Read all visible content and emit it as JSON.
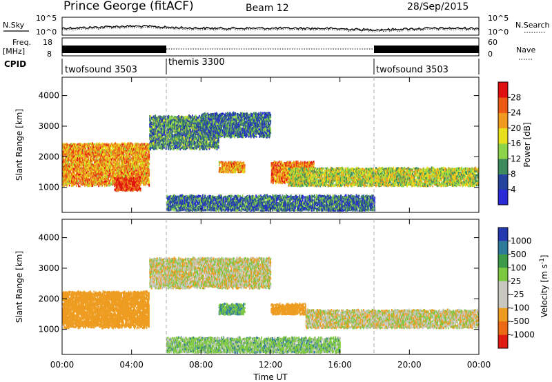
{
  "header": {
    "station": "Prince George (fitACF)",
    "beam": "Beam 12",
    "date": "28/Sep/2015"
  },
  "top_panels": {
    "noise": {
      "left_label": "N.Sky",
      "right_label": "N.Search",
      "left_ticks": [
        "10^5",
        "10^0"
      ],
      "right_ticks": [
        "10^5",
        "10^0"
      ]
    },
    "freq": {
      "left_label_1": "Freq.",
      "left_label_2": "[MHz]",
      "right_label": "Nave",
      "left_ticks": [
        "18",
        "8"
      ],
      "right_ticks": [
        "60",
        "0"
      ]
    },
    "cpid": {
      "label": "CPID",
      "modes": [
        "twofsound 3503",
        "themis 3300",
        "twofsound 3503"
      ]
    }
  },
  "power_panel": {
    "ylabel": "Slant Range [km]",
    "yticks": [
      "1000",
      "2000",
      "3000",
      "4000"
    ],
    "colorbar_label": "Power [dB]",
    "colorbar_ticks": [
      "4",
      "8",
      "12",
      "16",
      "20",
      "24",
      "28"
    ],
    "colors": [
      "#2a2ad8",
      "#26449e",
      "#3d8a5e",
      "#8ed44a",
      "#e8e01c",
      "#f09a1e",
      "#ec5a16",
      "#e01010"
    ]
  },
  "velocity_panel": {
    "ylabel": "Slant Range [km]",
    "yticks": [
      "1000",
      "2000",
      "3000",
      "4000"
    ],
    "colorbar_label": "Velocity [m s",
    "colorbar_sup": "-1",
    "colorbar_end": "]",
    "colorbar_ticks": [
      "1000",
      "500",
      "100",
      "25",
      "-25",
      "-100",
      "-500",
      "-1000"
    ],
    "colors": [
      "#2438b0",
      "#2e7a9a",
      "#3c9a48",
      "#7cc840",
      "#c8c8c0",
      "#c8c8c0",
      "#ee9c20",
      "#ec6a16",
      "#e01c12"
    ]
  },
  "xaxis": {
    "label": "Time UT",
    "ticks": [
      "00:00",
      "04:00",
      "08:00",
      "12:00",
      "16:00",
      "20:00",
      "00:00"
    ]
  },
  "chart_data": [
    {
      "type": "heatmap",
      "title": "Power",
      "xlabel": "Time UT",
      "ylabel": "Slant Range [km]",
      "xlim": [
        0,
        24
      ],
      "ylim": [
        180,
        4600
      ],
      "colorbar": {
        "label": "Power [dB]",
        "range": [
          0,
          32
        ]
      },
      "regions": [
        {
          "t": [
            0,
            5
          ],
          "range_km": [
            1000,
            2400
          ],
          "power_db": 22
        },
        {
          "t": [
            3,
            4.5
          ],
          "range_km": [
            850,
            1300
          ],
          "power_db": 28
        },
        {
          "t": [
            5,
            9
          ],
          "range_km": [
            2200,
            3300
          ],
          "power_db": 10
        },
        {
          "t": [
            8,
            12
          ],
          "range_km": [
            2600,
            3400
          ],
          "power_db": 8
        },
        {
          "t": [
            9,
            10.5
          ],
          "range_km": [
            1450,
            1800
          ],
          "power_db": 22
        },
        {
          "t": [
            12,
            14.5
          ],
          "range_km": [
            1100,
            1800
          ],
          "power_db": 24
        },
        {
          "t": [
            13,
            24
          ],
          "range_km": [
            1000,
            1600
          ],
          "power_db": 16
        },
        {
          "t": [
            6,
            18
          ],
          "range_km": [
            200,
            700
          ],
          "power_db": 8
        }
      ]
    },
    {
      "type": "heatmap",
      "title": "Velocity",
      "xlabel": "Time UT",
      "ylabel": "Slant Range [km]",
      "xlim": [
        0,
        24
      ],
      "ylim": [
        180,
        4600
      ],
      "colorbar": {
        "label": "Velocity [m s-1]",
        "range": [
          -1000,
          1000
        ]
      },
      "regions": [
        {
          "t": [
            0,
            5
          ],
          "range_km": [
            1000,
            2200
          ],
          "velocity_ms": -100
        },
        {
          "t": [
            5,
            12
          ],
          "range_km": [
            2300,
            3300
          ],
          "velocity_ms": 0
        },
        {
          "t": [
            9,
            10.5
          ],
          "range_km": [
            1450,
            1800
          ],
          "velocity_ms": 100
        },
        {
          "t": [
            12,
            14
          ],
          "range_km": [
            1450,
            1800
          ],
          "velocity_ms": -150
        },
        {
          "t": [
            14,
            24
          ],
          "range_km": [
            1000,
            1600
          ],
          "velocity_ms": 0
        },
        {
          "t": [
            6,
            16
          ],
          "range_km": [
            200,
            700
          ],
          "velocity_ms": 60
        }
      ]
    }
  ]
}
